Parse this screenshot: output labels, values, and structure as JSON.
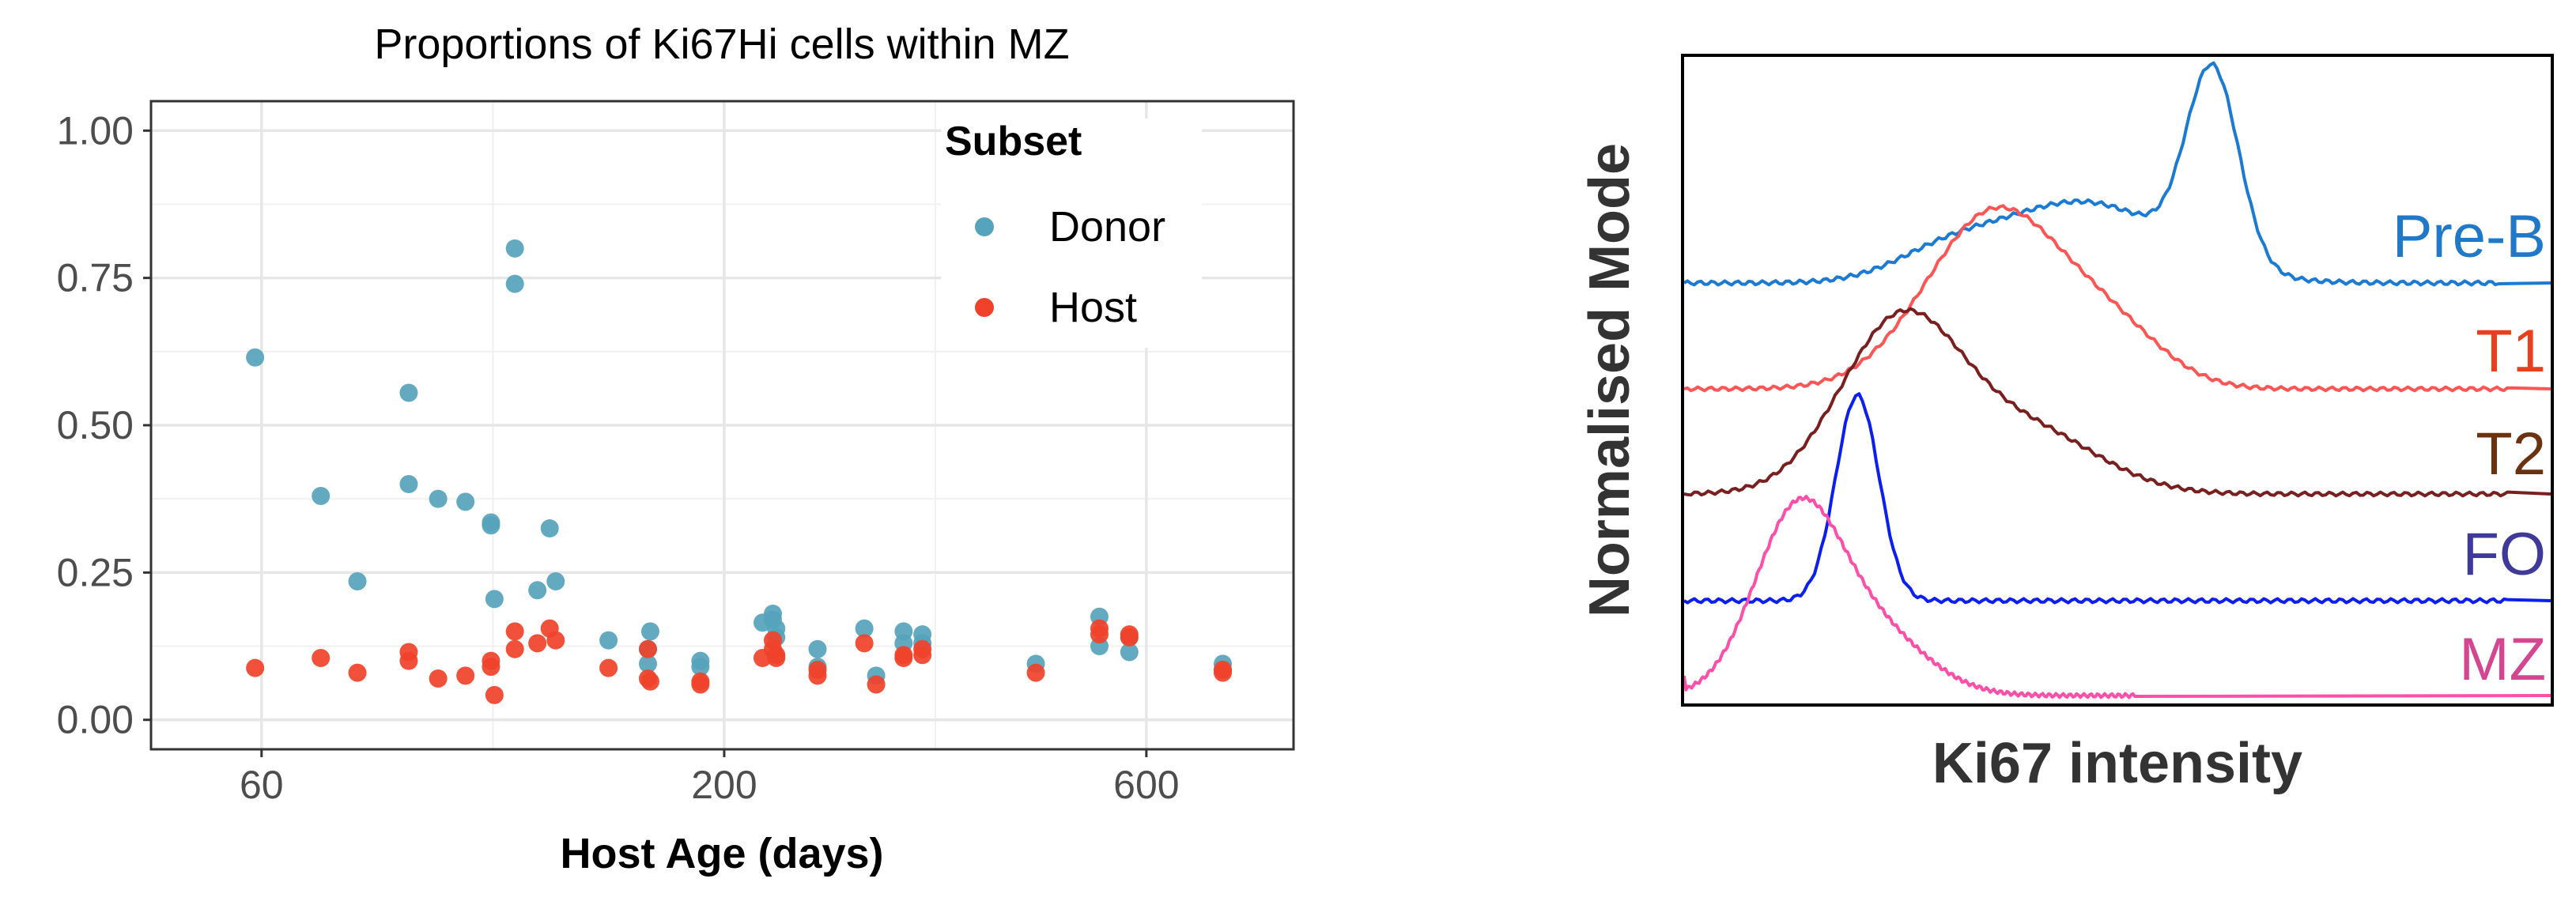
{
  "chart_data": [
    {
      "type": "scatter",
      "title": "Proportions of Ki67Hi cells within MZ",
      "xlabel": "Host Age (days)",
      "ylabel": "",
      "x_scale": "log",
      "xlim": [
        45,
        880
      ],
      "ylim": [
        -0.05,
        1.05
      ],
      "x_ticks": [
        {
          "value": 60,
          "label": "60"
        },
        {
          "value": 200,
          "label": "200"
        },
        {
          "value": 600,
          "label": "600"
        }
      ],
      "y_ticks": [
        {
          "value": 0,
          "label": "0.00"
        },
        {
          "value": 0.25,
          "label": "0.25"
        },
        {
          "value": 0.5,
          "label": "0.50"
        },
        {
          "value": 0.75,
          "label": "0.75"
        },
        {
          "value": 1,
          "label": "1.00"
        }
      ],
      "grid": true,
      "legend": {
        "title": "Subset",
        "position": "top-right"
      },
      "series": [
        {
          "name": "Donor",
          "color": "#56a3bc",
          "points": [
            [
              59,
              0.615
            ],
            [
              70,
              0.38
            ],
            [
              77,
              0.235
            ],
            [
              88,
              0.555
            ],
            [
              88,
              0.4
            ],
            [
              95,
              0.375
            ],
            [
              102,
              0.37
            ],
            [
              109,
              0.335
            ],
            [
              109,
              0.33
            ],
            [
              110,
              0.205
            ],
            [
              116,
              0.8
            ],
            [
              116,
              0.74
            ],
            [
              123,
              0.22
            ],
            [
              127,
              0.325
            ],
            [
              129,
              0.235
            ],
            [
              148,
              0.135
            ],
            [
              164,
              0.12
            ],
            [
              164,
              0.095
            ],
            [
              165,
              0.15
            ],
            [
              188,
              0.1
            ],
            [
              188,
              0.09
            ],
            [
              221,
              0.165
            ],
            [
              227,
              0.18
            ],
            [
              227,
              0.17
            ],
            [
              229,
              0.155
            ],
            [
              229,
              0.14
            ],
            [
              255,
              0.12
            ],
            [
              255,
              0.09
            ],
            [
              288,
              0.155
            ],
            [
              297,
              0.075
            ],
            [
              319,
              0.15
            ],
            [
              319,
              0.13
            ],
            [
              335,
              0.145
            ],
            [
              335,
              0.13
            ],
            [
              450,
              0.095
            ],
            [
              531,
              0.175
            ],
            [
              531,
              0.125
            ],
            [
              574,
              0.14
            ],
            [
              574,
              0.115
            ],
            [
              732,
              0.095
            ],
            [
              732,
              0.085
            ]
          ]
        },
        {
          "name": "Host",
          "color": "#f0422a",
          "points": [
            [
              59,
              0.088
            ],
            [
              70,
              0.105
            ],
            [
              77,
              0.08
            ],
            [
              88,
              0.115
            ],
            [
              88,
              0.1
            ],
            [
              95,
              0.07
            ],
            [
              102,
              0.075
            ],
            [
              109,
              0.1
            ],
            [
              109,
              0.09
            ],
            [
              110,
              0.042
            ],
            [
              116,
              0.15
            ],
            [
              116,
              0.12
            ],
            [
              123,
              0.13
            ],
            [
              127,
              0.155
            ],
            [
              129,
              0.135
            ],
            [
              148,
              0.088
            ],
            [
              164,
              0.12
            ],
            [
              164,
              0.07
            ],
            [
              165,
              0.065
            ],
            [
              188,
              0.065
            ],
            [
              188,
              0.06
            ],
            [
              221,
              0.105
            ],
            [
              227,
              0.135
            ],
            [
              227,
              0.12
            ],
            [
              229,
              0.105
            ],
            [
              229,
              0.11
            ],
            [
              255,
              0.085
            ],
            [
              255,
              0.075
            ],
            [
              288,
              0.13
            ],
            [
              297,
              0.06
            ],
            [
              319,
              0.11
            ],
            [
              319,
              0.105
            ],
            [
              335,
              0.11
            ],
            [
              335,
              0.12
            ],
            [
              450,
              0.08
            ],
            [
              531,
              0.155
            ],
            [
              531,
              0.145
            ],
            [
              574,
              0.145
            ],
            [
              574,
              0.14
            ],
            [
              732,
              0.08
            ],
            [
              732,
              0.085
            ]
          ]
        }
      ]
    },
    {
      "type": "line",
      "chart_kind": "stacked histogram overlay",
      "xlabel": "Ki67 intensity",
      "ylabel": "Normalised Mode",
      "series": [
        {
          "name": "Pre-B",
          "color": "#1a7ad4",
          "peak_position": 0.61,
          "peak_height": 0.5,
          "peak_width": 0.03,
          "baseline": 0
        },
        {
          "name": "T1",
          "color": "#ff5555",
          "peak_position": 0.36,
          "peak_height": 0.5,
          "peak_width": 0.08,
          "baseline": 0
        },
        {
          "name": "T2",
          "color": "#7a1f1f",
          "peak_position": 0.25,
          "peak_height": 0.48,
          "peak_width": 0.07,
          "baseline": 0
        },
        {
          "name": "FO",
          "color": "#0b1ff0",
          "peak_position": 0.2,
          "peak_height": 0.56,
          "peak_width": 0.025,
          "baseline": 0
        },
        {
          "name": "MZ",
          "color": "#ff4fa8",
          "peak_position": 0.13,
          "peak_height": 0.48,
          "peak_width": 0.05,
          "baseline": 0
        }
      ],
      "label_colors": {
        "Pre-B": "#1f78c8",
        "T1": "#e8401c",
        "T2": "#6b3210",
        "FO": "#3f3a9a",
        "MZ": "#d4468f"
      }
    }
  ]
}
